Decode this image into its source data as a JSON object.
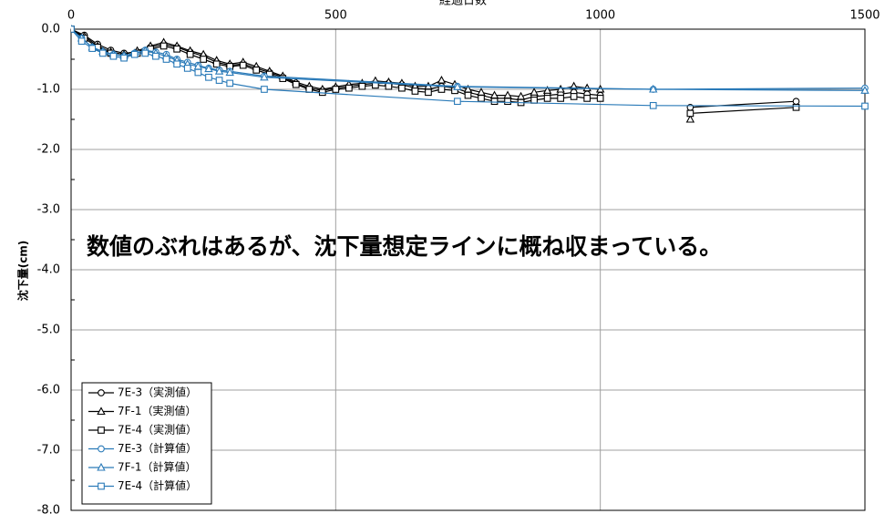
{
  "chart_data": {
    "type": "line",
    "x_label": "経過日数",
    "y_label": "沈下量(cm)",
    "annotation": "数値のぶれはあるが、沈下量想定ラインに概ね収まっている。",
    "xlim": [
      0,
      1500
    ],
    "xticks": [
      0,
      500,
      1000,
      1500
    ],
    "ylim": [
      -8,
      0
    ],
    "yticks": [
      {
        "value": 0,
        "label": "0.0"
      },
      {
        "value": -1,
        "label": "-1.0"
      },
      {
        "value": -2,
        "label": "-2.0"
      },
      {
        "value": -3,
        "label": "-3.0"
      },
      {
        "value": -4,
        "label": "-4.0"
      },
      {
        "value": -5,
        "label": "-5.0"
      },
      {
        "value": -6,
        "label": "-6.0"
      },
      {
        "value": -7,
        "label": "-7.0"
      },
      {
        "value": -8,
        "label": "-8.0"
      }
    ],
    "grid": true,
    "legend": "lower left",
    "series": [
      {
        "name": "7E-3（実測値）",
        "color": "#000000",
        "marker": "circle",
        "x": [
          0,
          25,
          50,
          75,
          100,
          125,
          150,
          175,
          200,
          225,
          250,
          275,
          300,
          325,
          350,
          375,
          400,
          425,
          450,
          475,
          500,
          525,
          550,
          575,
          600,
          625,
          650,
          675,
          700,
          725,
          750,
          775,
          800,
          825,
          850,
          875,
          900,
          925,
          950,
          975,
          1000,
          1100,
          1170,
          1370
        ],
        "values": [
          0,
          -0.1,
          -0.25,
          -0.35,
          -0.4,
          -0.38,
          -0.3,
          -0.25,
          -0.3,
          -0.38,
          -0.45,
          -0.55,
          -0.6,
          -0.58,
          -0.65,
          -0.72,
          -0.8,
          -0.9,
          -0.98,
          -1.02,
          -0.98,
          -0.95,
          -0.92,
          -0.9,
          -0.9,
          -0.92,
          -0.98,
          -1.0,
          -0.95,
          -0.98,
          -1.05,
          -1.1,
          -1.15,
          -1.15,
          -1.18,
          -1.12,
          -1.1,
          -1.08,
          -1.05,
          -1.08,
          -1.1,
          null,
          -1.3,
          -1.2
        ]
      },
      {
        "name": "7F-1（実測値）",
        "color": "#000000",
        "marker": "triangle",
        "x": [
          0,
          25,
          50,
          75,
          100,
          125,
          150,
          175,
          200,
          225,
          250,
          275,
          300,
          325,
          350,
          375,
          400,
          425,
          450,
          475,
          500,
          525,
          550,
          575,
          600,
          625,
          650,
          675,
          700,
          725,
          750,
          775,
          800,
          825,
          850,
          875,
          900,
          925,
          950,
          975,
          1000,
          1100,
          1170,
          1370
        ],
        "values": [
          0,
          -0.12,
          -0.28,
          -0.38,
          -0.42,
          -0.36,
          -0.28,
          -0.22,
          -0.28,
          -0.36,
          -0.42,
          -0.52,
          -0.58,
          -0.55,
          -0.62,
          -0.7,
          -0.78,
          -0.88,
          -0.95,
          -1.0,
          -0.96,
          -0.92,
          -0.9,
          -0.86,
          -0.88,
          -0.9,
          -0.95,
          -0.95,
          -0.85,
          -0.92,
          -1.0,
          -1.05,
          -1.1,
          -1.1,
          -1.12,
          -1.05,
          -1.02,
          -1.0,
          -0.95,
          -0.98,
          -1.0,
          null,
          -1.5,
          null
        ]
      },
      {
        "name": "7E-4（実測値）",
        "color": "#000000",
        "marker": "square",
        "x": [
          0,
          25,
          50,
          75,
          100,
          125,
          150,
          175,
          200,
          225,
          250,
          275,
          300,
          325,
          350,
          375,
          400,
          425,
          450,
          475,
          500,
          525,
          550,
          575,
          600,
          625,
          650,
          675,
          700,
          725,
          750,
          775,
          800,
          825,
          850,
          875,
          900,
          925,
          950,
          975,
          1000,
          1100,
          1170,
          1370
        ],
        "values": [
          0,
          -0.15,
          -0.3,
          -0.4,
          -0.45,
          -0.4,
          -0.33,
          -0.28,
          -0.33,
          -0.42,
          -0.5,
          -0.58,
          -0.62,
          -0.6,
          -0.68,
          -0.75,
          -0.82,
          -0.92,
          -1.0,
          -1.05,
          -1.0,
          -0.98,
          -0.95,
          -0.93,
          -0.95,
          -0.98,
          -1.03,
          -1.05,
          -1.0,
          -1.02,
          -1.1,
          -1.15,
          -1.2,
          -1.2,
          -1.22,
          -1.18,
          -1.15,
          -1.15,
          -1.12,
          -1.15,
          -1.15,
          null,
          -1.4,
          -1.3
        ]
      },
      {
        "name": "7E-3（計算値）",
        "color": "#2a7ab8",
        "marker": "circle",
        "x": [
          0,
          20,
          40,
          60,
          80,
          100,
          120,
          140,
          160,
          180,
          200,
          220,
          240,
          260,
          280,
          300,
          365,
          730,
          1100,
          1500
        ],
        "values": [
          0,
          -0.15,
          -0.3,
          -0.38,
          -0.42,
          -0.45,
          -0.4,
          -0.35,
          -0.38,
          -0.42,
          -0.5,
          -0.55,
          -0.6,
          -0.65,
          -0.68,
          -0.7,
          -0.78,
          -0.95,
          -1.0,
          -0.98
        ]
      },
      {
        "name": "7F-1（計算値）",
        "color": "#2a7ab8",
        "marker": "triangle",
        "x": [
          0,
          20,
          40,
          60,
          80,
          100,
          120,
          140,
          160,
          180,
          200,
          220,
          240,
          260,
          280,
          300,
          365,
          730,
          1100,
          1500
        ],
        "values": [
          0,
          -0.15,
          -0.3,
          -0.37,
          -0.42,
          -0.44,
          -0.4,
          -0.36,
          -0.4,
          -0.45,
          -0.52,
          -0.58,
          -0.62,
          -0.66,
          -0.7,
          -0.72,
          -0.8,
          -0.96,
          -1.0,
          -1.02
        ]
      },
      {
        "name": "7E-4（計算値）",
        "color": "#2a7ab8",
        "marker": "square",
        "x": [
          0,
          20,
          40,
          60,
          80,
          100,
          120,
          140,
          160,
          180,
          200,
          220,
          240,
          260,
          280,
          300,
          365,
          730,
          1100,
          1500
        ],
        "values": [
          0,
          -0.2,
          -0.32,
          -0.4,
          -0.45,
          -0.48,
          -0.42,
          -0.4,
          -0.45,
          -0.5,
          -0.58,
          -0.65,
          -0.72,
          -0.8,
          -0.85,
          -0.9,
          -1.0,
          -1.2,
          -1.27,
          -1.28
        ]
      }
    ]
  }
}
